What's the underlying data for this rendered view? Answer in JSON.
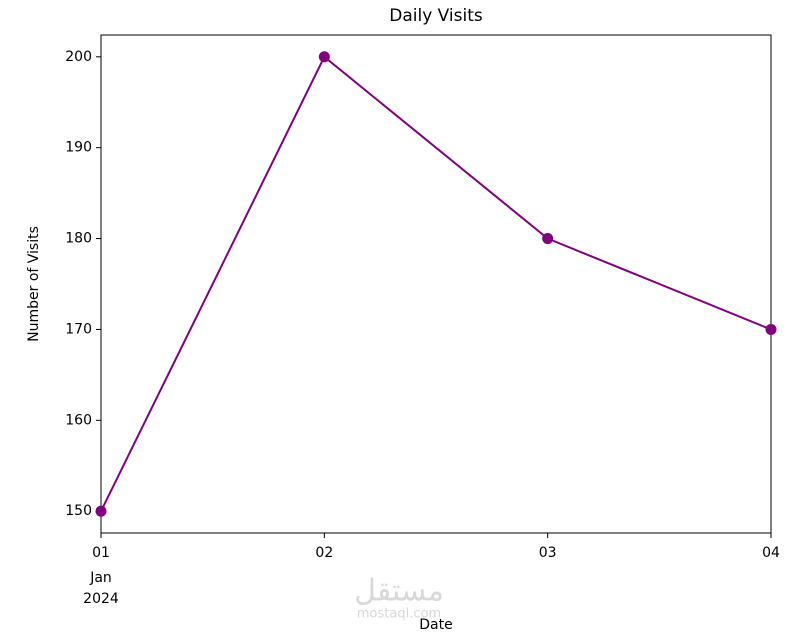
{
  "chart_data": {
    "type": "line",
    "title": "Daily Visits",
    "x_label": "Date",
    "y_label": "Number of Visits",
    "x": [
      "2024-01-01",
      "2024-01-02",
      "2024-01-03",
      "2024-01-04"
    ],
    "series": [
      {
        "name": "Visits",
        "color": "#800080",
        "values": [
          150,
          200,
          180,
          170
        ]
      }
    ],
    "xlim": [
      "2024-01-01",
      "2024-01-04"
    ],
    "xticks": [
      {
        "value": "2024-01-01",
        "label": "01"
      },
      {
        "value": "2024-01-02",
        "label": "02"
      },
      {
        "value": "2024-01-03",
        "label": "03"
      },
      {
        "value": "2024-01-04",
        "label": "04"
      }
    ],
    "x_offset_label": [
      "Jan",
      "2024"
    ],
    "ylim": [
      147.6,
      202.4
    ],
    "yticks": [
      150,
      160,
      170,
      180,
      190,
      200
    ],
    "grid": false,
    "watermark": [
      "مستقل",
      "mostaql.com"
    ]
  }
}
